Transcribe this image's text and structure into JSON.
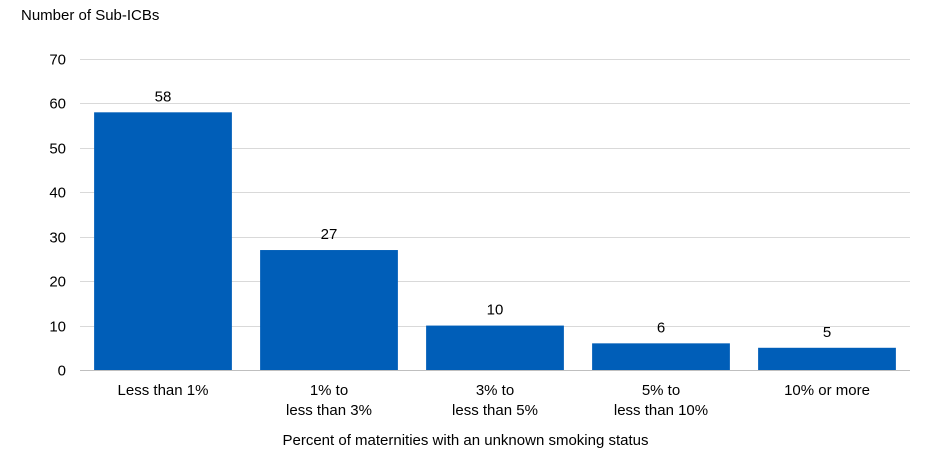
{
  "chart_data": {
    "type": "bar",
    "ylabel": "Number of Sub-ICBs",
    "xlabel": "Percent of maternities with an unknown smoking status",
    "categories": [
      [
        "Less than 1%"
      ],
      [
        "1% to",
        "less than 3%"
      ],
      [
        "3% to",
        "less than 5%"
      ],
      [
        "5% to",
        "less than 10%"
      ],
      [
        "10% or more"
      ]
    ],
    "values": [
      58,
      27,
      10,
      6,
      5
    ],
    "ylim": [
      0,
      70
    ],
    "yticks": [
      0,
      10,
      20,
      30,
      40,
      50,
      60,
      70
    ],
    "grid": true,
    "bar_color": "#005EB8",
    "grid_color": "#D9D9D9"
  }
}
